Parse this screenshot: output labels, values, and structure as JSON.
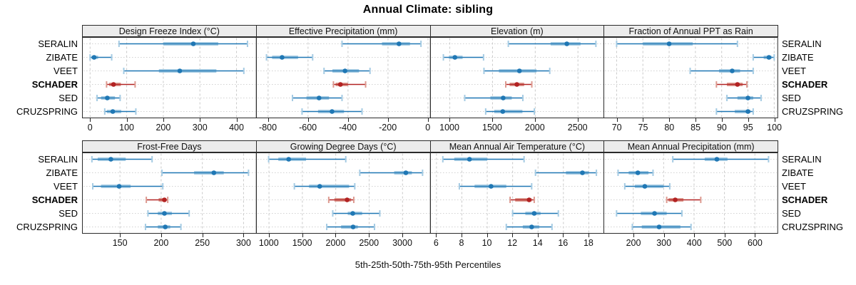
{
  "chart_data": {
    "type": "trellis-percentile-dotplot",
    "title": "Annual Climate: sibling",
    "caption": "5th-25th-50th-75th-95th Percentiles",
    "legend_position": "none",
    "grid": "dashed-vertical-at-ticks, dotted-horizontal-per-site",
    "sites": [
      "SERALIN",
      "ZIBATE",
      "VEET",
      "SCHADER",
      "SED",
      "CRUZSPRING"
    ],
    "highlight_site": "SCHADER",
    "percentile_labels": [
      "5th",
      "25th",
      "50th",
      "75th",
      "95th"
    ],
    "colors": {
      "series_blue": "#1f77b4",
      "series_blue_light": "#a5cbe3",
      "highlight_red": "#b22222",
      "highlight_red_light": "#dd9a90",
      "strip_bg": "#ececec",
      "panel_border": "#2b2b2b",
      "gridline": "#c9c9c9",
      "row_guide": "#d2d2d2"
    },
    "panels": [
      {
        "title": "Design Freeze Index (°C)",
        "row": 0,
        "col": 0,
        "xlim": [
          -22,
          453
        ],
        "ticks": [
          0,
          100,
          200,
          300,
          400
        ],
        "series": [
          [
            79,
            200,
            282,
            350,
            430
          ],
          [
            0,
            4,
            11,
            22,
            59
          ],
          [
            92,
            188,
            245,
            345,
            420
          ],
          [
            45,
            52,
            64,
            84,
            123
          ],
          [
            19,
            30,
            47,
            68,
            82
          ],
          [
            40,
            46,
            62,
            85,
            125
          ]
        ]
      },
      {
        "title": "Effective Precipitation (mm)",
        "row": 0,
        "col": 1,
        "xlim": [
          -860,
          10
        ],
        "ticks": [
          -800,
          -600,
          -400,
          -200,
          0
        ],
        "series": [
          [
            -430,
            -230,
            -145,
            -90,
            -35
          ],
          [
            -808,
            -780,
            -730,
            -650,
            -577
          ],
          [
            -520,
            -478,
            -415,
            -345,
            -290
          ],
          [
            -473,
            -462,
            -438,
            -400,
            -312
          ],
          [
            -678,
            -608,
            -545,
            -495,
            -430
          ],
          [
            -630,
            -550,
            -480,
            -420,
            -330
          ]
        ]
      },
      {
        "title": "Elevation (m)",
        "row": 0,
        "col": 2,
        "xlim": [
          770,
          2805
        ],
        "ticks": [
          1000,
          1500,
          2000,
          2500
        ],
        "series": [
          [
            1685,
            2180,
            2370,
            2530,
            2710
          ],
          [
            925,
            990,
            1060,
            1150,
            1395
          ],
          [
            1400,
            1575,
            1815,
            2015,
            2170
          ],
          [
            1655,
            1700,
            1785,
            1870,
            1960
          ],
          [
            1175,
            1475,
            1625,
            1725,
            1855
          ],
          [
            1420,
            1520,
            1620,
            1850,
            1990
          ]
        ]
      },
      {
        "title": "Fraction of Annual PPT as Rain",
        "row": 0,
        "col": 3,
        "xlim": [
          67.5,
          100.6
        ],
        "ticks": [
          70,
          75,
          80,
          85,
          90,
          95,
          100
        ],
        "series": [
          [
            70,
            75,
            80,
            84.5,
            93
          ],
          [
            96,
            98,
            99,
            99.5,
            100
          ],
          [
            84,
            89.5,
            92,
            93.5,
            96
          ],
          [
            89,
            91,
            93,
            94,
            94.8
          ],
          [
            91,
            93,
            95,
            96,
            97.5
          ],
          [
            89,
            92.5,
            95,
            95.5,
            96
          ]
        ]
      },
      {
        "title": "Frost-Free Days",
        "row": 1,
        "col": 0,
        "xlim": [
          104,
          315
        ],
        "ticks": [
          150,
          200,
          250,
          300
        ],
        "series": [
          [
            116,
            123,
            139,
            157,
            189
          ],
          [
            201,
            240,
            264,
            276,
            306
          ],
          [
            117,
            127,
            149,
            163,
            202
          ],
          [
            182,
            197,
            204,
            206,
            208
          ],
          [
            184,
            196,
            204,
            213,
            234
          ],
          [
            181,
            196,
            205,
            211,
            224
          ]
        ]
      },
      {
        "title": "Growing Degree Days (°C)",
        "row": 1,
        "col": 1,
        "xlim": [
          807,
          3411
        ],
        "ticks": [
          1000,
          1500,
          2000,
          2500,
          3000
        ],
        "series": [
          [
            995,
            1140,
            1295,
            1555,
            2150
          ],
          [
            2360,
            2875,
            3050,
            3140,
            3300
          ],
          [
            1380,
            1600,
            1760,
            2200,
            2285
          ],
          [
            1895,
            1980,
            2170,
            2230,
            2270
          ],
          [
            1955,
            2180,
            2255,
            2395,
            2660
          ],
          [
            1865,
            2080,
            2260,
            2330,
            2580
          ]
        ]
      },
      {
        "title": "Mean Annual Air Temperature (°C)",
        "row": 1,
        "col": 2,
        "xlim": [
          5.5,
          19.2
        ],
        "ticks": [
          6,
          8,
          10,
          12,
          14,
          16,
          18
        ],
        "series": [
          [
            6.5,
            7.4,
            8.6,
            10.0,
            12.9
          ],
          [
            13.8,
            16.2,
            17.5,
            18.0,
            18.6
          ],
          [
            7.8,
            9.0,
            10.3,
            11.5,
            13.5
          ],
          [
            11.8,
            12.2,
            13.3,
            13.5,
            13.7
          ],
          [
            12.0,
            13.0,
            13.7,
            14.2,
            15.6
          ],
          [
            11.5,
            12.8,
            13.5,
            14.1,
            15.1
          ]
        ]
      },
      {
        "title": "Mean Annual Precipitation (mm)",
        "row": 1,
        "col": 3,
        "xlim": [
          102,
          674
        ],
        "ticks": [
          200,
          300,
          400,
          500,
          600
        ],
        "series": [
          [
            330,
            435,
            475,
            510,
            645
          ],
          [
            150,
            185,
            215,
            250,
            265
          ],
          [
            172,
            205,
            238,
            300,
            320
          ],
          [
            310,
            316,
            338,
            365,
            422
          ],
          [
            145,
            225,
            270,
            310,
            360
          ],
          [
            197,
            228,
            285,
            355,
            390
          ]
        ]
      }
    ]
  }
}
